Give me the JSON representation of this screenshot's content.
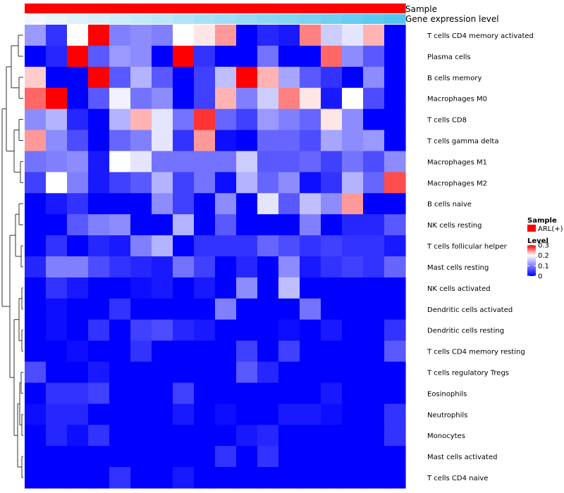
{
  "chart_data": {
    "type": "heatmap",
    "annotation_tracks": [
      {
        "label": "Sample",
        "color": "#ff0000",
        "values": [
          "ARL(+)",
          "ARL(+)",
          "ARL(+)",
          "ARL(+)",
          "ARL(+)",
          "ARL(+)",
          "ARL(+)",
          "ARL(+)",
          "ARL(+)",
          "ARL(+)",
          "ARL(+)",
          "ARL(+)",
          "ARL(+)",
          "ARL(+)",
          "ARL(+)",
          "ARL(+)",
          "ARL(+)",
          "ARL(+)"
        ]
      },
      {
        "label": "Gene expression level",
        "low_color": "#f2f8fd",
        "high_color": "#55c6ef",
        "values": [
          0.0,
          0.06,
          0.12,
          0.18,
          0.24,
          0.29,
          0.35,
          0.41,
          0.47,
          0.53,
          0.59,
          0.65,
          0.71,
          0.76,
          0.82,
          0.88,
          0.94,
          1.0
        ]
      }
    ],
    "rows": [
      "T cells CD4 memory activated",
      "Plasma cells",
      "B cells memory",
      "Macrophages M0",
      "T cells CD8",
      "T cells gamma delta",
      "Macrophages M1",
      "Macrophages M2",
      "B cells naive",
      "NK cells resting",
      "T cells follicular helper",
      "Mast cells resting",
      "NK cells activated",
      "Dendritic cells activated",
      "Dendritic cells resting",
      "T cells CD4 memory resting",
      "T cells regulatory  Tregs",
      "Eosinophils",
      "Neutrophils",
      "Monocytes",
      "Mast cells activated",
      "T cells CD4 naive"
    ],
    "values": [
      [
        0.12,
        0.04,
        0.2,
        0.3,
        0.1,
        0.11,
        0.1,
        0.2,
        0.21,
        0.24,
        0.0,
        0.03,
        0.02,
        0.25,
        0.16,
        0.18,
        0.23,
        0.0
      ],
      [
        0.0,
        0.03,
        0.3,
        0.07,
        0.12,
        0.11,
        0.0,
        0.3,
        0.04,
        0.0,
        0.0,
        0.09,
        0.0,
        0.0,
        0.26,
        0.11,
        0.07,
        0.0
      ],
      [
        0.22,
        0.0,
        0.0,
        0.3,
        0.07,
        0.14,
        0.07,
        0.0,
        0.05,
        0.15,
        0.3,
        0.23,
        0.13,
        0.07,
        0.04,
        0.0,
        0.11,
        0.0
      ],
      [
        0.26,
        0.3,
        0.0,
        0.07,
        0.19,
        0.09,
        0.11,
        0.0,
        0.05,
        0.23,
        0.1,
        0.16,
        0.25,
        0.21,
        0.02,
        0.2,
        0.06,
        0.0
      ],
      [
        0.11,
        0.14,
        0.03,
        0.0,
        0.14,
        0.23,
        0.18,
        0.09,
        0.28,
        0.08,
        0.05,
        0.12,
        0.1,
        0.08,
        0.21,
        0.11,
        0.0,
        0.0
      ],
      [
        0.24,
        0.11,
        0.06,
        0.0,
        0.08,
        0.1,
        0.18,
        0.04,
        0.24,
        0.01,
        0.0,
        0.08,
        0.08,
        0.06,
        0.13,
        0.11,
        0.12,
        0.0
      ],
      [
        0.09,
        0.1,
        0.11,
        0.02,
        0.2,
        0.18,
        0.09,
        0.09,
        0.09,
        0.09,
        0.16,
        0.07,
        0.07,
        0.08,
        0.05,
        0.09,
        0.06,
        0.11
      ],
      [
        0.05,
        0.2,
        0.1,
        0.02,
        0.05,
        0.07,
        0.14,
        0.05,
        0.09,
        0.01,
        0.14,
        0.08,
        0.11,
        0.01,
        0.04,
        0.14,
        0.08,
        0.27
      ],
      [
        0.0,
        0.02,
        0.04,
        0.0,
        0.0,
        0.0,
        0.11,
        0.05,
        0.0,
        0.11,
        0.0,
        0.18,
        0.07,
        0.15,
        0.11,
        0.24,
        0.0,
        0.0
      ],
      [
        0.0,
        0.0,
        0.07,
        0.1,
        0.11,
        0.0,
        0.0,
        0.14,
        0.0,
        0.07,
        0.0,
        0.0,
        0.0,
        0.1,
        0.0,
        0.03,
        0.03,
        0.07
      ],
      [
        0.0,
        0.04,
        0.0,
        0.03,
        0.02,
        0.1,
        0.14,
        0.0,
        0.04,
        0.04,
        0.04,
        0.08,
        0.06,
        0.04,
        0.05,
        0.04,
        0.04,
        0.02
      ],
      [
        0.03,
        0.1,
        0.1,
        0.06,
        0.04,
        0.03,
        0.02,
        0.09,
        0.05,
        0.0,
        0.03,
        0.0,
        0.11,
        0.02,
        0.04,
        0.05,
        0.04,
        0.08
      ],
      [
        0.0,
        0.04,
        0.02,
        0.0,
        0.0,
        0.01,
        0.02,
        0.0,
        0.02,
        0.0,
        0.11,
        0.0,
        0.15,
        0.0,
        0.0,
        0.0,
        0.0,
        0.0
      ],
      [
        0.0,
        0.01,
        0.0,
        0.0,
        0.04,
        0.0,
        0.0,
        0.0,
        0.0,
        0.1,
        0.0,
        0.0,
        0.0,
        0.09,
        0.0,
        0.0,
        0.0,
        0.0
      ],
      [
        0.0,
        0.01,
        0.0,
        0.04,
        0.0,
        0.05,
        0.06,
        0.03,
        0.02,
        0.0,
        0.0,
        0.0,
        0.01,
        0.0,
        0.02,
        0.0,
        0.0,
        0.04
      ],
      [
        0.0,
        0.0,
        0.01,
        0.0,
        0.0,
        0.04,
        0.0,
        0.0,
        0.0,
        0.0,
        0.05,
        0.0,
        0.05,
        0.0,
        0.0,
        0.0,
        0.0,
        0.07
      ],
      [
        0.06,
        0.0,
        0.0,
        0.02,
        0.0,
        0.0,
        0.0,
        0.0,
        0.0,
        0.0,
        0.07,
        0.03,
        0.0,
        0.0,
        0.0,
        0.0,
        0.0,
        0.0
      ],
      [
        0.0,
        0.04,
        0.04,
        0.05,
        0.0,
        0.0,
        0.0,
        0.05,
        0.0,
        0.0,
        0.0,
        0.0,
        0.0,
        0.0,
        0.02,
        0.0,
        0.0,
        0.0
      ],
      [
        0.01,
        0.03,
        0.03,
        0.0,
        0.0,
        0.0,
        0.0,
        0.02,
        0.0,
        0.01,
        0.0,
        0.0,
        0.02,
        0.02,
        0.01,
        0.0,
        0.0,
        0.04
      ],
      [
        0.0,
        0.03,
        0.01,
        0.04,
        0.0,
        0.0,
        0.0,
        0.0,
        0.0,
        0.0,
        0.02,
        0.03,
        0.0,
        0.0,
        0.0,
        0.0,
        0.0,
        0.04
      ],
      [
        0.0,
        0.0,
        0.0,
        0.0,
        0.0,
        0.0,
        0.0,
        0.0,
        0.0,
        0.04,
        0.0,
        0.04,
        0.0,
        0.0,
        0.0,
        0.0,
        0.0,
        0.0
      ],
      [
        0.0,
        0.0,
        0.0,
        0.0,
        0.04,
        0.0,
        0.0,
        0.02,
        0.0,
        0.0,
        0.0,
        0.0,
        0.0,
        0.0,
        0.0,
        0.0,
        0.0,
        0.0
      ]
    ],
    "color_scale": {
      "low": "#0000ff",
      "mid": "#ffffff",
      "high": "#ff0000",
      "min": 0,
      "mid_value": 0.2,
      "max": 0.3
    },
    "legend": {
      "sample_title": "Sample",
      "sample_entry": "ARL(+)",
      "sample_color": "#ff0000",
      "level_title": "Level",
      "level_ticks": [
        "0.3",
        "0.2",
        "0.1",
        "0"
      ],
      "level_tick_values": [
        0.3,
        0.2,
        0.1,
        0
      ]
    },
    "row_dendrogram": "left"
  }
}
